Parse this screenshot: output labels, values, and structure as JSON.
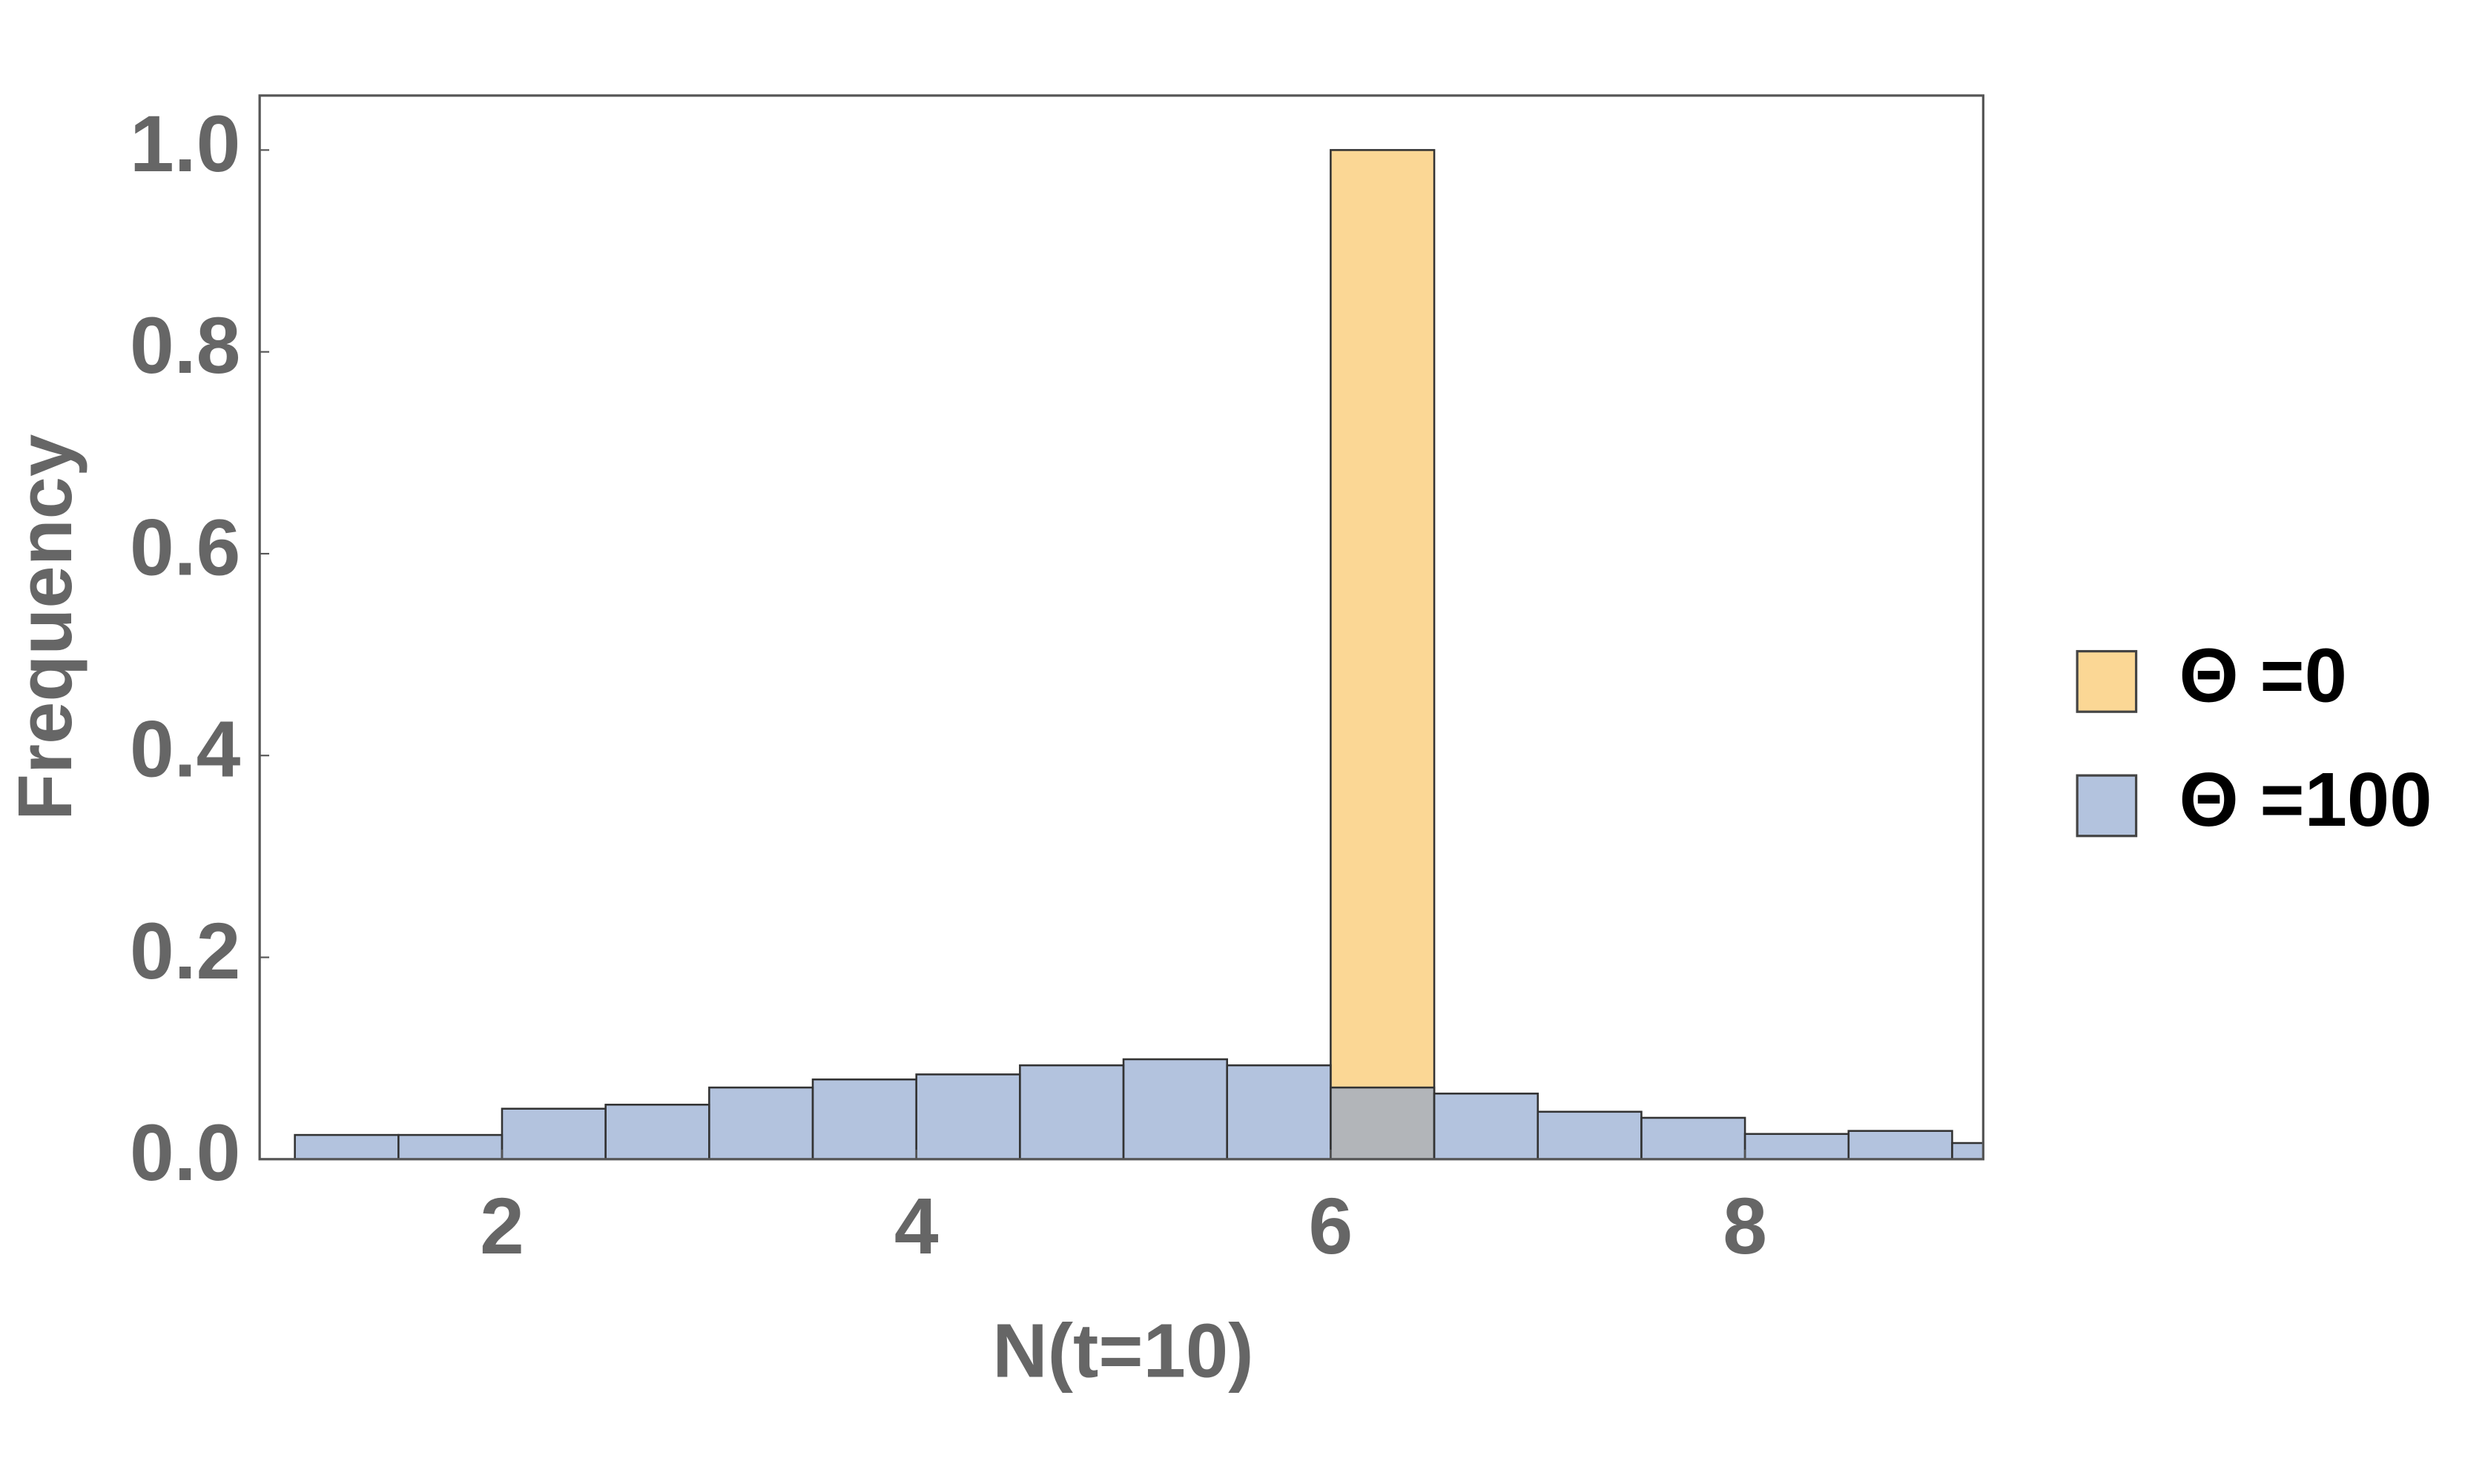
{
  "chart_data": {
    "type": "histogram",
    "x_label": "N(t=10)",
    "y_label": "Frequency",
    "bins": [
      1.0,
      1.5,
      2.0,
      2.5,
      3.0,
      3.5,
      4.0,
      4.5,
      5.0,
      5.5,
      6.0,
      6.5,
      7.0,
      7.5,
      8.0,
      8.5,
      9.0,
      9.5
    ],
    "series": [
      {
        "name": "Θ =0",
        "color": "#f9c25c",
        "values": [
          0,
          0,
          0,
          0,
          0,
          0,
          0,
          0,
          0,
          0,
          1.0,
          0,
          0,
          0,
          0,
          0,
          0
        ]
      },
      {
        "name": "Θ =100",
        "color": "#8aa3cc",
        "values": [
          0.024,
          0.024,
          0.05,
          0.054,
          0.071,
          0.079,
          0.084,
          0.093,
          0.099,
          0.093,
          0.071,
          0.065,
          0.047,
          0.041,
          0.025,
          0.028,
          0.016
        ]
      }
    ],
    "xlim": [
      0.83,
      9.15
    ],
    "xticks": [
      2,
      4,
      6,
      8
    ],
    "ylim": [
      0,
      1.054
    ],
    "yticks": [
      {
        "value": 0,
        "label": "0.0"
      },
      0.2,
      0.4,
      0.6,
      0.8,
      {
        "value": 1,
        "label": "1.0"
      }
    ],
    "legend": "right"
  }
}
